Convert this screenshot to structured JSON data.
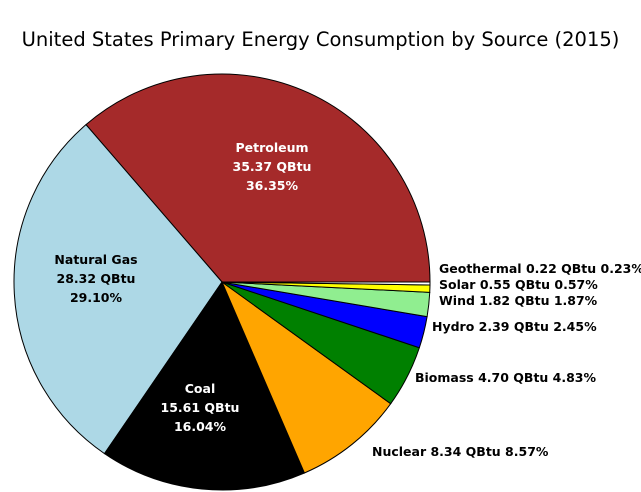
{
  "chart_data": {
    "type": "pie",
    "title": "United States Primary Energy Consumption by Source (2015)",
    "unit": "QBtu",
    "slices": [
      {
        "label": "Petroleum",
        "value": 35.37,
        "percent": 36.35,
        "color": "#a52a2a",
        "display": "Petroleum\n35.37 QBtu\n36.35%"
      },
      {
        "label": "Natural Gas",
        "value": 28.32,
        "percent": 29.1,
        "color": "#add8e6",
        "display": "Natural Gas\n28.32 QBtu\n29.10%"
      },
      {
        "label": "Coal",
        "value": 15.61,
        "percent": 16.04,
        "color": "#000000",
        "display": "Coal\n15.61 QBtu\n16.04%"
      },
      {
        "label": "Nuclear",
        "value": 8.34,
        "percent": 8.57,
        "color": "#ffa500",
        "display": "Nuclear 8.34 QBtu 8.57%"
      },
      {
        "label": "Biomass",
        "value": 4.7,
        "percent": 4.83,
        "color": "#008000",
        "display": "Biomass 4.70 QBtu 4.83%"
      },
      {
        "label": "Hydro",
        "value": 2.39,
        "percent": 2.45,
        "color": "#0000ff",
        "display": "Hydro 2.39 QBtu 2.45%"
      },
      {
        "label": "Wind",
        "value": 1.82,
        "percent": 1.87,
        "color": "#90ee90",
        "display": "Wind 1.82 QBtu 1.87%"
      },
      {
        "label": "Solar",
        "value": 0.55,
        "percent": 0.57,
        "color": "#ffff00",
        "display": "Solar 0.55 QBtu 0.57%"
      },
      {
        "label": "Geothermal",
        "value": 0.22,
        "percent": 0.23,
        "color": "#ffffff",
        "display": "Geothermal 0.22 QBtu 0.23%"
      }
    ],
    "start_angle_deg": 0,
    "direction": "counterclockwise",
    "outline_color": "#000000"
  }
}
